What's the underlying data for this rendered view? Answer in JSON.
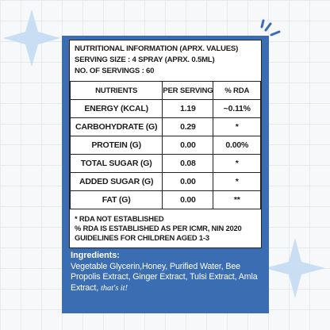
{
  "header": {
    "lines": [
      "NUTRITIONAL INFORMATION (APRX. VALUES)",
      "SERVING SIZE : 4 SPRAY (APRX. 0.5ML)",
      "NO. OF SERVINGS : 60"
    ]
  },
  "table": {
    "columns": [
      "NUTRIENTS",
      "PER SERVING",
      "% RDA"
    ],
    "rows": [
      [
        "ENERGY (KCAL)",
        "1.19",
        "~0.11%"
      ],
      [
        "CARBOHYDRATE (G)",
        "0.29",
        "*"
      ],
      [
        "PROTEIN (G)",
        "0.00",
        "0.00%"
      ],
      [
        "TOTAL SUGAR (G)",
        "0.08",
        "*"
      ],
      [
        "ADDED SUGAR (G)",
        "0.00",
        "*"
      ],
      [
        "FAT (G)",
        "0.00",
        "**"
      ]
    ]
  },
  "notes": [
    "* RDA NOT ESTABLISHED",
    "% RDA IS ESTABLISHED AS PER ICMR, NIN 2020 GUIDELINES FOR CHILDREN AGED 1-3"
  ],
  "ingredients": {
    "heading": "Ingredients:",
    "text": "Vegetable Glycerin,Honey, Purified Water, Bee Propolis Extract, Ginger Extract, Tulsi Extract, Amla Extract,",
    "tagline": "that's it!"
  }
}
